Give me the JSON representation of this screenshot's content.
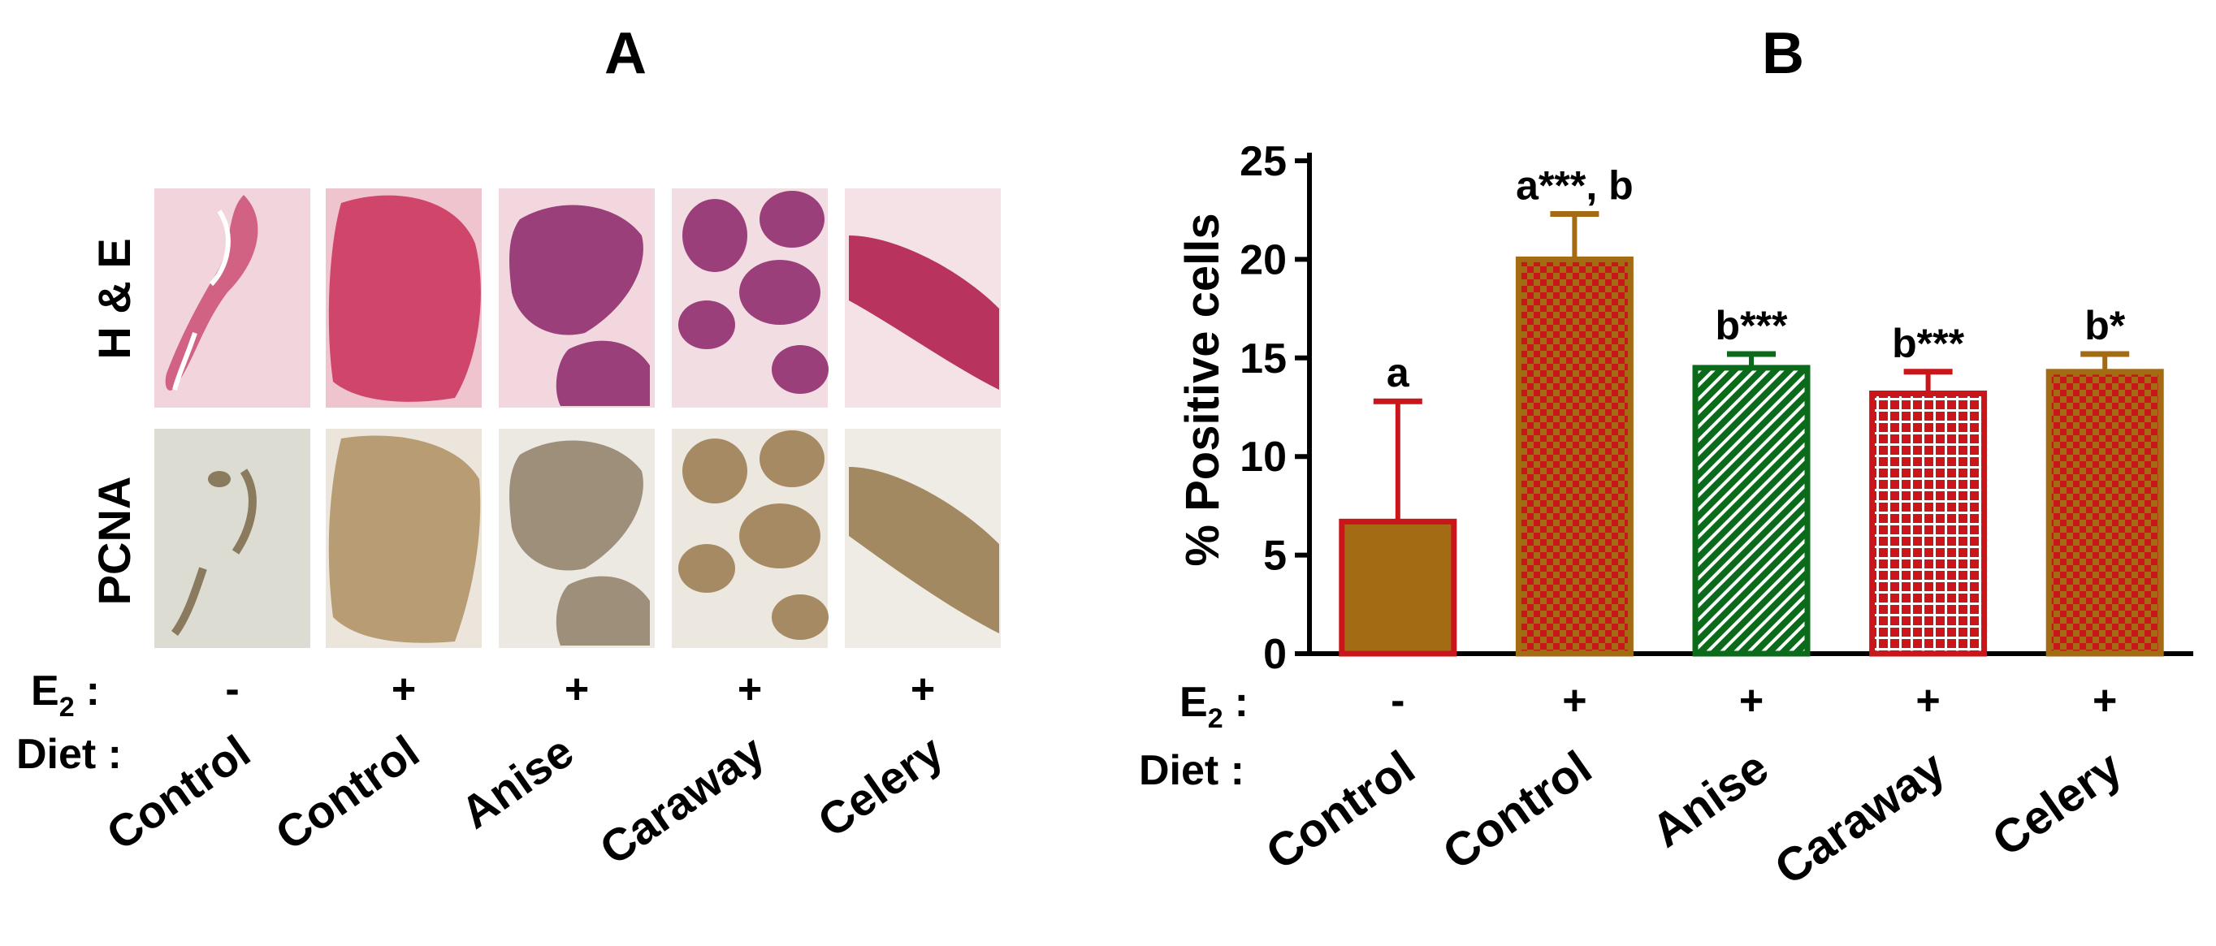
{
  "panel_a": {
    "label": "A",
    "rows": [
      {
        "label": "H & E",
        "stain": "he"
      },
      {
        "label": "PCNA",
        "stain": "pcna"
      }
    ],
    "e2_label": "E",
    "e2_subscript": "2",
    "e2_colon": ":",
    "diet_label": "Diet :",
    "columns": [
      {
        "e2": "-",
        "diet": "Control"
      },
      {
        "e2": "+",
        "diet": "Control"
      },
      {
        "e2": "+",
        "diet": "Anise"
      },
      {
        "e2": "+",
        "diet": "Caraway"
      },
      {
        "e2": "+",
        "diet": "Celery"
      }
    ],
    "colors": {
      "he_background": "#f2d5dc",
      "he_tissue": "#c8456e",
      "he_tissue_purple": "#9a3f7a",
      "pcna_background": "#eceae3",
      "pcna_tissue": "#a58a63"
    }
  },
  "panel_b": {
    "label": "B",
    "e2_label": "E",
    "e2_subscript": "2",
    "e2_colon": ":",
    "diet_label": "Diet :",
    "e2_values": [
      "-",
      "+",
      "+",
      "+",
      "+"
    ]
  },
  "chart_data": {
    "type": "bar",
    "categories": [
      "Control",
      "Control",
      "Anise",
      "Caraway",
      "Celery"
    ],
    "values": [
      6.7,
      20.0,
      14.5,
      13.2,
      14.3
    ],
    "error": [
      6.1,
      2.3,
      0.7,
      1.1,
      0.9
    ],
    "annotations": [
      "a",
      "a***, b",
      "b***",
      "b***",
      "b*"
    ],
    "ylabel": "% Positive cells",
    "ylim": [
      0,
      25
    ],
    "yticks": [
      0,
      5,
      10,
      15,
      20,
      25
    ],
    "grid": false,
    "fill_colors": [
      "#a36b14",
      "#a36b14",
      "#0b6b1a",
      "#c8161a",
      "#c8161a"
    ],
    "pattern_colors": [
      null,
      "#c8161a",
      "#ffffff",
      "#ffffff",
      "#a36b14"
    ],
    "patterns": [
      "solid",
      "checker",
      "diagonal",
      "grid",
      "checker"
    ],
    "edge_colors": [
      "#c8161a",
      "#a36b14",
      "#0b6b1a",
      "#c8161a",
      "#a36b14"
    ]
  }
}
